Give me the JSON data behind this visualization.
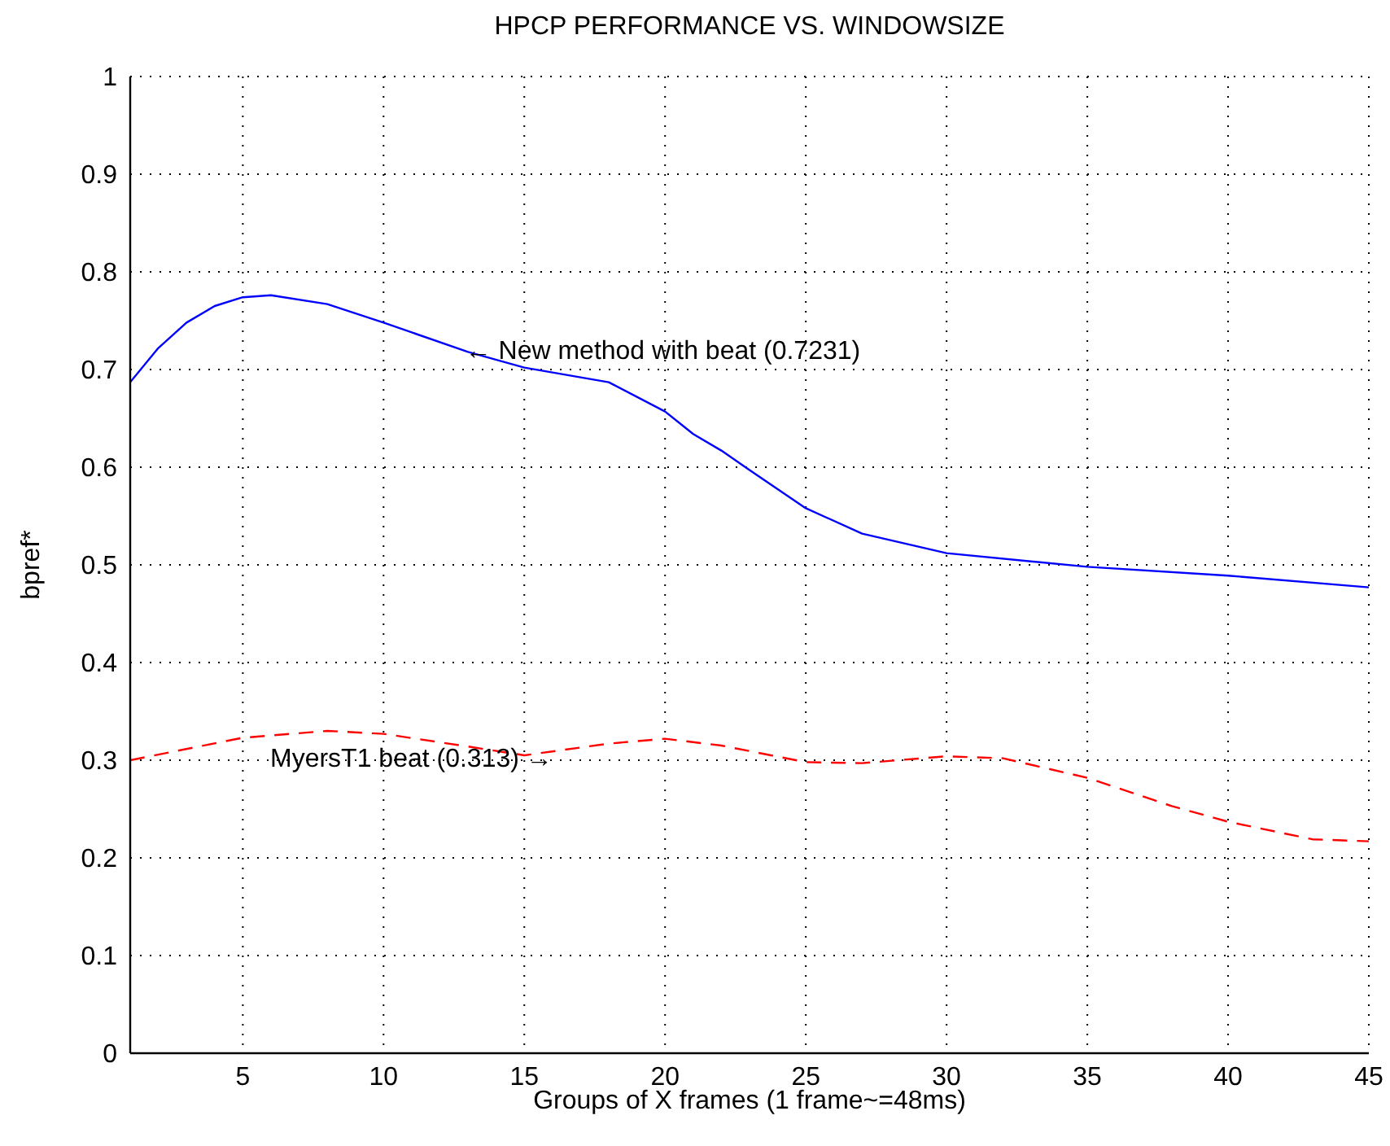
{
  "chart_data": {
    "type": "line",
    "title": "HPCP PERFORMANCE VS. WINDOWSIZE",
    "xlabel": "Groups of X frames (1 frame~=48ms)",
    "ylabel": "bpref*",
    "x": [
      1,
      2,
      3,
      4,
      5,
      6,
      8,
      10,
      13,
      15,
      18,
      20,
      21,
      22,
      23,
      25,
      27,
      30,
      35,
      40,
      45
    ],
    "series": [
      {
        "color": "#0000ff",
        "line_style": "solid",
        "values": [
          0.687,
          0.722,
          0.748,
          0.765,
          0.774,
          0.776,
          0.767,
          0.748,
          0.718,
          0.702,
          0.687,
          0.657,
          0.634,
          0.617,
          0.597,
          0.558,
          0.532,
          0.512,
          0.498,
          0.489,
          0.477
        ]
      },
      {
        "color": "#ff0000",
        "line_style": "dashed",
        "x": [
          1,
          5,
          8,
          10,
          13,
          15,
          18,
          20,
          22,
          25,
          27,
          30,
          32,
          35,
          38,
          40,
          43,
          45
        ],
        "values": [
          0.3,
          0.323,
          0.33,
          0.327,
          0.314,
          0.305,
          0.317,
          0.322,
          0.315,
          0.298,
          0.297,
          0.304,
          0.302,
          0.282,
          0.253,
          0.237,
          0.219,
          0.217
        ]
      }
    ],
    "annotations": [
      {
        "text": "← New method with beat (0.7231)",
        "x": 12.9,
        "y": 0.72
      },
      "MyersT1 beat (0.313) →"
    ],
    "xlim": [
      1,
      45
    ],
    "xticks": [
      5,
      10,
      15,
      20,
      25,
      30,
      35,
      40,
      45
    ],
    "ylim": [
      0,
      1
    ],
    "yticks": [
      0,
      0.1,
      0.2,
      0.3,
      0.4,
      0.5,
      0.6,
      0.7,
      0.8,
      0.9,
      1
    ],
    "grid": true,
    "marker": "none"
  }
}
